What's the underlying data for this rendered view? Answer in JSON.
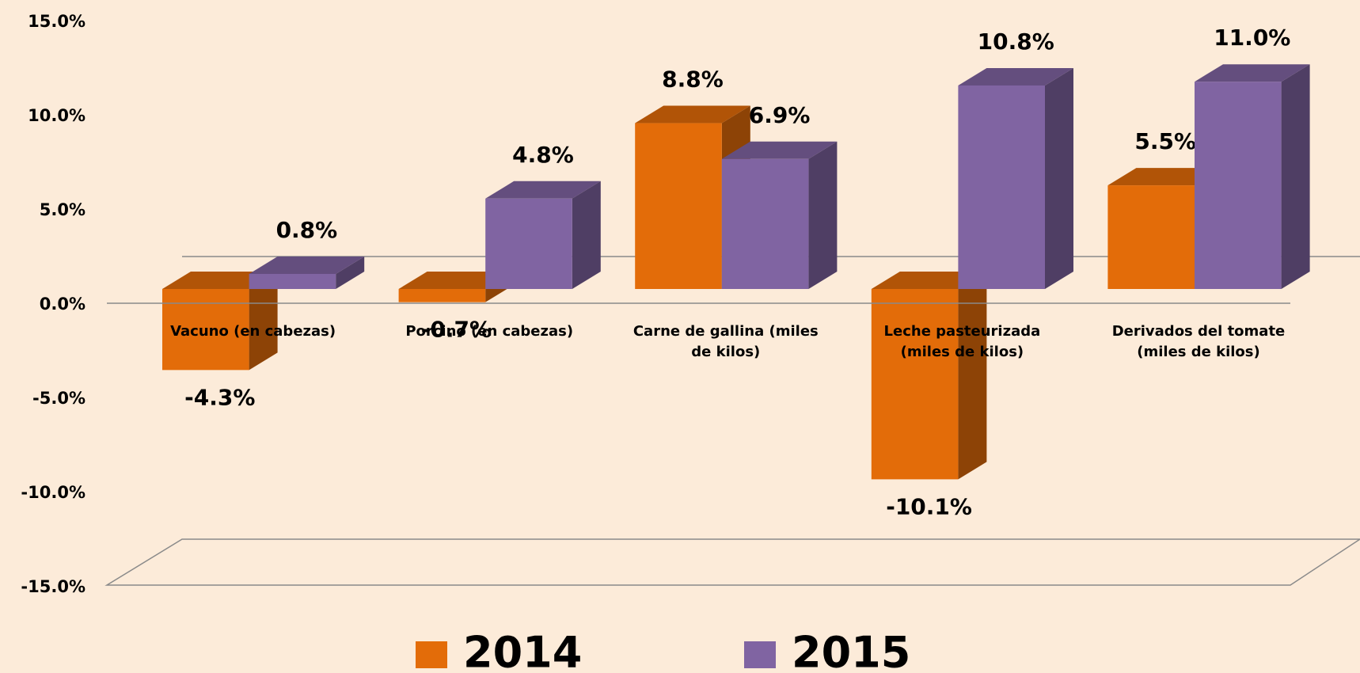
{
  "chart_data": {
    "type": "bar3d",
    "categories": [
      "Vacuno (en cabezas)",
      "Porcino (en cabezas)",
      "Carne de gallina  (miles de kilos)",
      "Leche pasteurizada (miles de kilos)",
      "Derivados del tomate (miles de kilos)"
    ],
    "series": [
      {
        "name": "2014",
        "color": "#e36c09",
        "values": [
          -4.3,
          -0.7,
          8.8,
          -10.1,
          5.5
        ],
        "value_labels": [
          "-4.3%",
          "-0.7%",
          "8.8%",
          "-10.1%",
          "5.5%"
        ]
      },
      {
        "name": "2015",
        "color": "#8064a2",
        "values": [
          0.8,
          4.8,
          6.9,
          10.8,
          11.0
        ],
        "value_labels": [
          "0.8%",
          "4.8%",
          "6.9%",
          "10.8%",
          "11.0%"
        ]
      }
    ],
    "ylim": [
      -15,
      15
    ],
    "yticks": [
      {
        "value": 15,
        "label": "15.0%"
      },
      {
        "value": 10,
        "label": "10.0%"
      },
      {
        "value": 5,
        "label": "5.0%"
      },
      {
        "value": 0,
        "label": "0.0%"
      },
      {
        "value": -5,
        "label": "-5.0%"
      },
      {
        "value": -10,
        "label": "-10.0%"
      },
      {
        "value": -15,
        "label": "-15.0%"
      }
    ],
    "legend": "bottom"
  }
}
